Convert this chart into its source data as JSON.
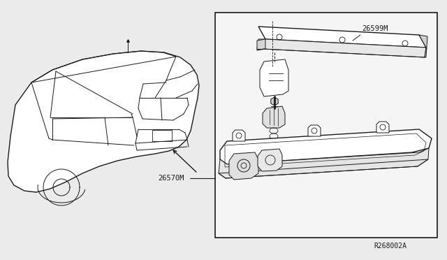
{
  "bg_color": "#ebebeb",
  "box_facecolor": "#f5f5f5",
  "line_color": "#1a1a1a",
  "label_26570M": "26570M",
  "label_26599M": "26599M",
  "ref_code": "R268002A"
}
